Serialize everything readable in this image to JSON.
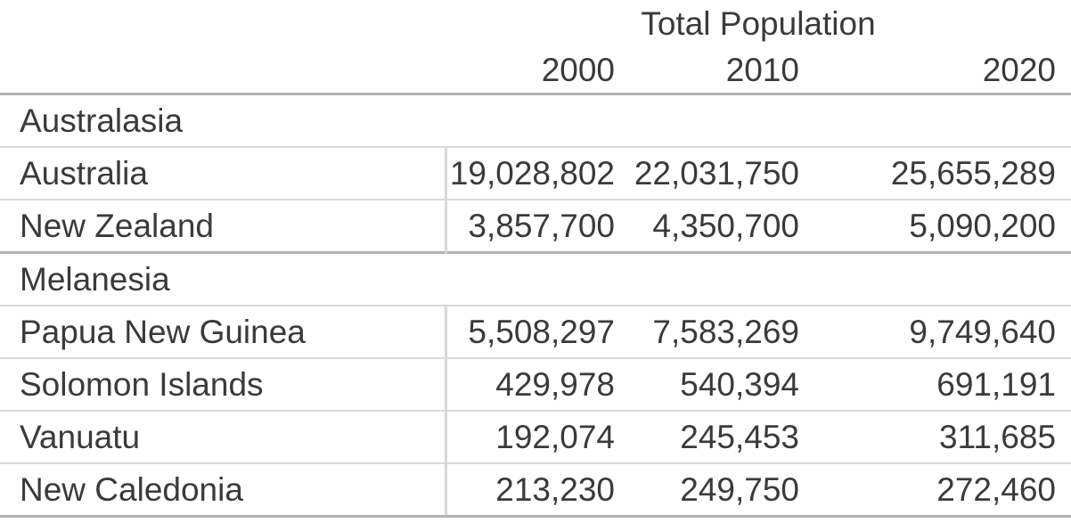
{
  "header": {
    "group_label": "Total Population",
    "years": [
      "2000",
      "2010",
      "2020"
    ]
  },
  "regions": [
    {
      "name": "Australasia",
      "countries": [
        {
          "name": "Australia",
          "values": [
            "19,028,802",
            "22,031,750",
            "25,655,289"
          ]
        },
        {
          "name": "New Zealand",
          "values": [
            "3,857,700",
            "4,350,700",
            "5,090,200"
          ]
        }
      ]
    },
    {
      "name": "Melanesia",
      "countries": [
        {
          "name": "Papua New Guinea",
          "values": [
            "5,508,297",
            "7,583,269",
            "9,749,640"
          ]
        },
        {
          "name": "Solomon Islands",
          "values": [
            "429,978",
            "540,394",
            "691,191"
          ]
        },
        {
          "name": "Vanuatu",
          "values": [
            "192,074",
            "245,453",
            "311,685"
          ]
        },
        {
          "name": "New Caledonia",
          "values": [
            "213,230",
            "249,750",
            "272,460"
          ]
        }
      ]
    }
  ],
  "colors": {
    "text": "#3a3a3a",
    "strong_rule": "#b3b3b3",
    "light_rule": "#d8d8d8",
    "background": "#ffffff"
  },
  "chart_data": {
    "type": "table",
    "title": "Total Population",
    "columns": [
      "2000",
      "2010",
      "2020"
    ],
    "row_groups": [
      {
        "group": "Australasia",
        "rows": [
          {
            "label": "Australia",
            "values": [
              19028802,
              22031750,
              25655289
            ]
          },
          {
            "label": "New Zealand",
            "values": [
              3857700,
              4350700,
              5090200
            ]
          }
        ]
      },
      {
        "group": "Melanesia",
        "rows": [
          {
            "label": "Papua New Guinea",
            "values": [
              5508297,
              7583269,
              9749640
            ]
          },
          {
            "label": "Solomon Islands",
            "values": [
              429978,
              540394,
              691191
            ]
          },
          {
            "label": "Vanuatu",
            "values": [
              192074,
              245453,
              311685
            ]
          },
          {
            "label": "New Caledonia",
            "values": [
              213230,
              249750,
              272460
            ]
          }
        ]
      }
    ]
  }
}
